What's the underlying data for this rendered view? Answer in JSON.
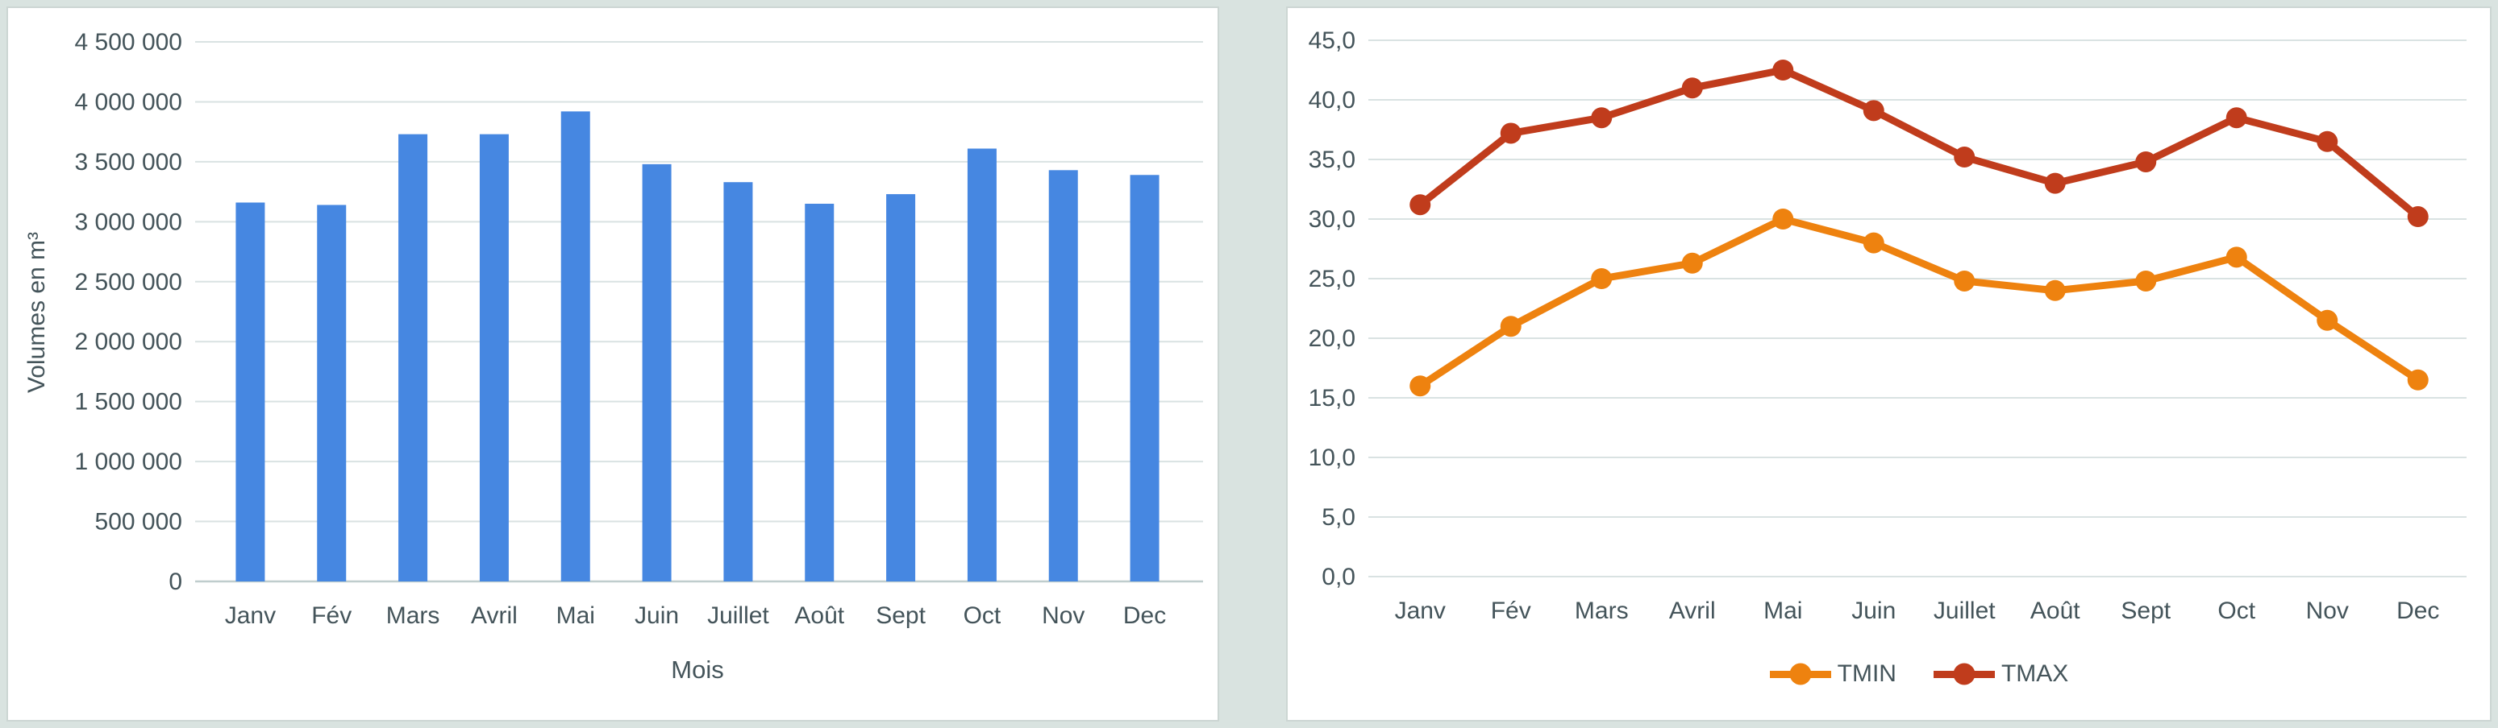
{
  "frame": {
    "background": "#d9e3e0",
    "panel_border": "#ccd6d3",
    "text_color": "#44545a",
    "gridline_color": "#d9e2e2",
    "baseline_color": "#bfcdcd"
  },
  "chart_data": [
    {
      "type": "bar",
      "title": "",
      "categories": [
        "Janv",
        "Fév",
        "Mars",
        "Avril",
        "Mai",
        "Juin",
        "Juillet",
        "Août",
        "Sept",
        "Oct",
        "Nov",
        "Dec"
      ],
      "values": [
        3160000,
        3140000,
        3730000,
        3730000,
        3920000,
        3480000,
        3330000,
        3150000,
        3230000,
        3610000,
        3430000,
        3390000
      ],
      "xlabel": "Mois",
      "ylabel": "Volumes en m³",
      "ylim": [
        0,
        4500000
      ],
      "ytick_step": 500000,
      "ytick_labels": [
        "0",
        "500 000",
        "1 000 000",
        "1 500 000",
        "2 000 000",
        "2 500 000",
        "3 000 000",
        "3 500 000",
        "4 000 000",
        "4 500 000"
      ],
      "bar_color": "#4687e1",
      "grid": true,
      "legend_position": "none"
    },
    {
      "type": "line",
      "title": "",
      "categories": [
        "Janv",
        "Fév",
        "Mars",
        "Avril",
        "Mai",
        "Juin",
        "Juillet",
        "Août",
        "Sept",
        "Oct",
        "Nov",
        "Dec"
      ],
      "series": [
        {
          "name": "TMIN",
          "color": "#ee820f",
          "values": [
            16.0,
            21.0,
            25.0,
            26.3,
            30.0,
            28.0,
            24.8,
            24.0,
            24.8,
            26.8,
            21.5,
            16.5
          ]
        },
        {
          "name": "TMAX",
          "color": "#c03c1c",
          "values": [
            31.2,
            37.2,
            38.5,
            41.0,
            42.5,
            39.1,
            35.2,
            33.0,
            34.8,
            38.5,
            36.5,
            30.2
          ]
        }
      ],
      "xlabel": "",
      "ylabel": "",
      "ylim": [
        0,
        45
      ],
      "ytick_step": 5,
      "ytick_labels": [
        "0,0",
        "5,0",
        "10,0",
        "15,0",
        "20,0",
        "25,0",
        "30,0",
        "35,0",
        "40,0",
        "45,0"
      ],
      "grid": true,
      "legend_position": "bottom"
    }
  ]
}
